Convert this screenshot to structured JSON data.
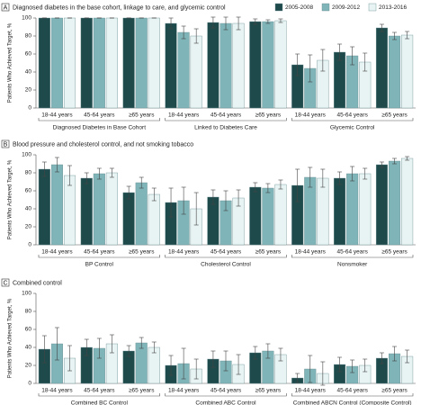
{
  "chart_data": [
    {
      "type": "bar",
      "panel": "A",
      "title": "Diagnosed diabetes in the base cohort, linkage to care, and glycemic control",
      "ylabel": "Patients Who Achieved Target, %",
      "legend": "top-right",
      "categories": [
        "18-44 years",
        "45-64 years",
        "≥65 years",
        "18-44 years",
        "45-64 years",
        "≥65 years",
        "18-44 years",
        "45-64 years",
        "≥65 years"
      ],
      "groups": [
        "Diagnosed Diabetes in Base Cohort",
        "Linked to Diabetes Care",
        "Glycemic Control"
      ],
      "ylim": [
        0,
        100
      ],
      "yticks": [
        0,
        20,
        40,
        60,
        80,
        100
      ],
      "series": [
        {
          "name": "2005-2008",
          "color": "#1f4a4b",
          "values": [
            100,
            100,
            100,
            94,
            95,
            96,
            48,
            62,
            89
          ],
          "errors": [
            0,
            0,
            0,
            6,
            6,
            3,
            12,
            9,
            4
          ]
        },
        {
          "name": "2009-2012",
          "color": "#7fb4b8",
          "values": [
            100,
            100,
            100,
            84,
            94,
            96,
            44,
            58,
            80
          ],
          "errors": [
            0,
            0,
            0,
            7,
            7,
            2,
            15,
            10,
            4
          ]
        },
        {
          "name": "2013-2016",
          "color": "#e8f3f3",
          "values": [
            100,
            100,
            100,
            80,
            94,
            97,
            53,
            51,
            81
          ],
          "errors": [
            0,
            0,
            0,
            8,
            7,
            2,
            12,
            10,
            4
          ]
        }
      ]
    },
    {
      "type": "bar",
      "panel": "B",
      "title": "Blood pressure and cholesterol control, and not smoking tobacco",
      "ylabel": "Patients Who Achieved Target, %",
      "categories": [
        "18-44 years",
        "45-64 years",
        "≥65 years",
        "18-44 years",
        "45-64 years",
        "≥65 years",
        "18-44 years",
        "45-64 years",
        "≥65 years"
      ],
      "groups": [
        "BP Control",
        "Cholesterol Control",
        "Nonsmoker"
      ],
      "ylim": [
        0,
        100
      ],
      "yticks": [
        0,
        20,
        40,
        60,
        80,
        100
      ],
      "series": [
        {
          "color": "#1f4a4b",
          "values": [
            84,
            74,
            58,
            47,
            53,
            64,
            66,
            74,
            89
          ],
          "errors": [
            8,
            6,
            7,
            16,
            8,
            5,
            18,
            7,
            3
          ]
        },
        {
          "color": "#7fb4b8",
          "values": [
            89,
            79,
            69,
            49,
            49,
            63,
            75,
            79,
            93
          ],
          "errors": [
            8,
            6,
            6,
            15,
            11,
            5,
            11,
            8,
            3
          ]
        },
        {
          "color": "#e8f3f3",
          "values": [
            77,
            80,
            56,
            40,
            52,
            67,
            74,
            79,
            96
          ],
          "errors": [
            11,
            5,
            7,
            18,
            9,
            5,
            10,
            6,
            2
          ]
        }
      ]
    },
    {
      "type": "bar",
      "panel": "C",
      "title": "Combined control",
      "ylabel": "Patients Who Achieved Target, %",
      "categories": [
        "18-44 years",
        "45-64 years",
        "≥65 years",
        "18-44 years",
        "45-64 years",
        "≥65 years",
        "18-44 years",
        "45-64 years",
        "≥65 years"
      ],
      "groups": [
        "Combined BC Control",
        "Combined ABC Control",
        "Combined ABCN Control (Composite Control)"
      ],
      "ylim": [
        0,
        100
      ],
      "yticks": [
        0,
        20,
        40,
        60,
        80,
        100
      ],
      "series": [
        {
          "color": "#1f4a4b",
          "values": [
            38,
            40,
            36,
            20,
            27,
            34,
            6,
            21,
            28
          ],
          "errors": [
            15,
            9,
            6,
            11,
            9,
            7,
            5,
            8,
            6
          ]
        },
        {
          "color": "#7fb4b8",
          "values": [
            44,
            39,
            45,
            22,
            25,
            36,
            16,
            19,
            33
          ],
          "errors": [
            18,
            11,
            6,
            17,
            11,
            8,
            15,
            7,
            8
          ]
        },
        {
          "color": "#e8f3f3",
          "values": [
            28,
            44,
            40,
            16,
            21,
            32,
            11,
            20,
            30
          ],
          "errors": [
            14,
            10,
            6,
            11,
            11,
            7,
            13,
            7,
            7
          ]
        }
      ]
    }
  ]
}
